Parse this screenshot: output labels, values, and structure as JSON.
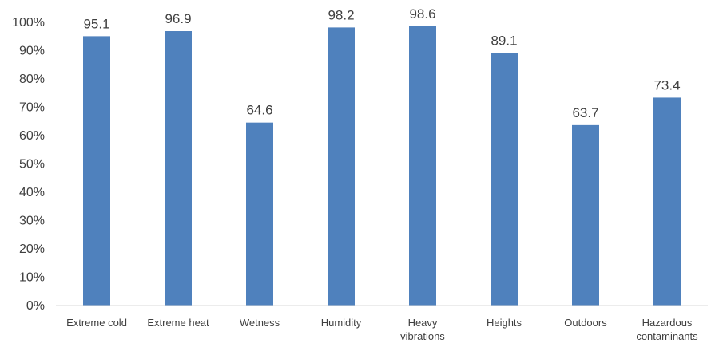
{
  "chart_data": {
    "type": "bar",
    "categories": [
      [
        "Extreme cold"
      ],
      [
        "Extreme heat"
      ],
      [
        "Wetness"
      ],
      [
        "Humidity"
      ],
      [
        "Heavy",
        "vibrations"
      ],
      [
        "Heights"
      ],
      [
        "Outdoors"
      ],
      [
        "Hazardous",
        "contaminants"
      ]
    ],
    "values": [
      95.1,
      96.9,
      64.6,
      98.2,
      98.6,
      89.1,
      63.7,
      73.4
    ],
    "data_labels": [
      "95.1",
      "96.9",
      "64.6",
      "98.2",
      "98.6",
      "89.1",
      "63.7",
      "73.4"
    ],
    "title": "",
    "xlabel": "",
    "ylabel": "",
    "ylim": [
      0,
      100
    ],
    "yticks": [
      0,
      10,
      20,
      30,
      40,
      50,
      60,
      70,
      80,
      90,
      100
    ],
    "ytick_labels": [
      "0%",
      "10%",
      "20%",
      "30%",
      "40%",
      "50%",
      "60%",
      "70%",
      "80%",
      "90%",
      "100%"
    ],
    "grid": false,
    "legend": "none",
    "bar_color": "#4f81bd"
  }
}
